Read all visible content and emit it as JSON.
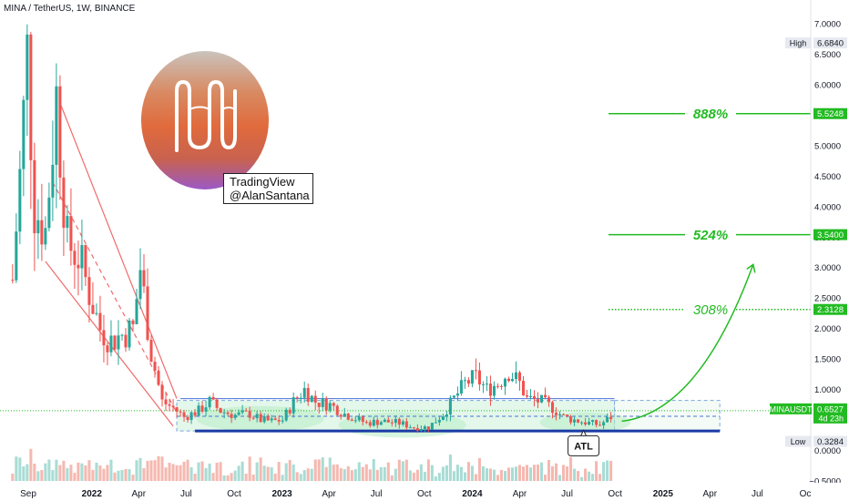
{
  "header": {
    "title": "MINA / TetherUS, 1W, BINANCE"
  },
  "watermark": {
    "line1": "TradingView",
    "line2": "@AlanSantana"
  },
  "colors": {
    "up": "#26a69a",
    "down": "#ef5350",
    "target": "#22bb22",
    "range_band": "#c8f0d6",
    "support": "#1a3aa5",
    "price_tag": "#22bb22"
  },
  "chart_data": {
    "type": "candlestick",
    "symbol": "MINAUSDT",
    "interval": "1W",
    "ylim": [
      -0.5,
      7.0
    ],
    "y_ticks": [
      7.0,
      6.5,
      6.0,
      5.5,
      5.0,
      4.5,
      4.0,
      3.5,
      3.0,
      2.5,
      2.0,
      1.5,
      1.0,
      0.5,
      0.0,
      -0.5
    ],
    "y_tick_labels": [
      "7.0000",
      "6.5000",
      "6.0000",
      "5.5000",
      "5.0000",
      "4.5000",
      "4.0000",
      "3.5000",
      "3.0000",
      "2.5000",
      "2.0000",
      "1.5000",
      "1.0000",
      "0.5000",
      "0.0000",
      "−0.5000"
    ],
    "x_ticks": [
      {
        "label": "Sep",
        "date": "2021-09-01"
      },
      {
        "label": "2022",
        "date": "2022-01-01"
      },
      {
        "label": "Apr",
        "date": "2022-04-01"
      },
      {
        "label": "Jul",
        "date": "2022-07-01"
      },
      {
        "label": "Oct",
        "date": "2022-10-01"
      },
      {
        "label": "2023",
        "date": "2023-01-01"
      },
      {
        "label": "Apr",
        "date": "2023-04-01"
      },
      {
        "label": "Jul",
        "date": "2023-07-01"
      },
      {
        "label": "Oct",
        "date": "2023-10-01"
      },
      {
        "label": "2024",
        "date": "2024-01-01"
      },
      {
        "label": "Apr",
        "date": "2024-04-01"
      },
      {
        "label": "Jul",
        "date": "2024-07-01"
      },
      {
        "label": "Oct",
        "date": "2024-10-01"
      },
      {
        "label": "2025",
        "date": "2025-01-01"
      },
      {
        "label": "Apr",
        "date": "2025-04-01"
      },
      {
        "label": "Jul",
        "date": "2025-07-01"
      },
      {
        "label": "Oc",
        "date": "2025-10-01"
      }
    ],
    "x_range": [
      "2021-08-01",
      "2025-10-01"
    ],
    "price_path": [
      [
        "2021-08-02",
        2.8
      ],
      [
        "2021-08-16",
        4.5
      ],
      [
        "2021-08-30",
        6.5
      ],
      [
        "2021-09-13",
        4.0
      ],
      [
        "2021-10-04",
        3.6
      ],
      [
        "2021-10-25",
        5.8
      ],
      [
        "2021-11-15",
        3.4
      ],
      [
        "2021-12-06",
        3.2
      ],
      [
        "2021-12-27",
        2.6
      ],
      [
        "2022-01-17",
        2.0
      ],
      [
        "2022-02-07",
        1.8
      ],
      [
        "2022-02-28",
        1.9
      ],
      [
        "2022-03-21",
        2.0
      ],
      [
        "2022-04-04",
        3.0
      ],
      [
        "2022-04-25",
        1.6
      ],
      [
        "2022-05-16",
        0.8
      ],
      [
        "2022-06-06",
        0.7
      ],
      [
        "2022-06-27",
        0.55
      ],
      [
        "2022-07-25",
        0.65
      ],
      [
        "2022-08-15",
        0.8
      ],
      [
        "2022-09-05",
        0.65
      ],
      [
        "2022-10-03",
        0.58
      ],
      [
        "2022-10-31",
        0.6
      ],
      [
        "2022-11-21",
        0.5
      ],
      [
        "2022-12-12",
        0.48
      ],
      [
        "2023-01-02",
        0.5
      ],
      [
        "2023-01-23",
        0.8
      ],
      [
        "2023-02-13",
        1.0
      ],
      [
        "2023-03-06",
        0.8
      ],
      [
        "2023-04-03",
        0.75
      ],
      [
        "2023-05-01",
        0.6
      ],
      [
        "2023-06-12",
        0.45
      ],
      [
        "2023-07-10",
        0.48
      ],
      [
        "2023-08-14",
        0.45
      ],
      [
        "2023-09-11",
        0.38
      ],
      [
        "2023-10-09",
        0.38
      ],
      [
        "2023-11-06",
        0.6
      ],
      [
        "2023-11-27",
        0.85
      ],
      [
        "2023-12-18",
        1.1
      ],
      [
        "2024-01-08",
        1.2
      ],
      [
        "2024-01-29",
        1.0
      ],
      [
        "2024-02-19",
        1.1
      ],
      [
        "2024-03-11",
        1.3
      ],
      [
        "2024-04-01",
        1.1
      ],
      [
        "2024-04-15",
        0.85
      ],
      [
        "2024-05-13",
        0.8
      ],
      [
        "2024-06-03",
        0.7
      ],
      [
        "2024-06-24",
        0.55
      ],
      [
        "2024-07-15",
        0.5
      ],
      [
        "2024-08-12",
        0.45
      ],
      [
        "2024-09-02",
        0.42
      ],
      [
        "2024-09-23",
        0.55
      ]
    ],
    "volume_range": [
      0,
      0.65
    ],
    "current_price": {
      "label": "MINAUSDT",
      "value": 0.6527,
      "value_label": "0.6527",
      "countdown": "4d 23h"
    },
    "high": {
      "label": "High",
      "value": 6.684,
      "value_label": "6.6840"
    },
    "low": {
      "label": "Low",
      "value": 0.3284,
      "value_label": "0.3284"
    },
    "targets": [
      {
        "label": "888%",
        "value": 5.5248,
        "value_label": "5.5248",
        "style": "solid"
      },
      {
        "label": "524%",
        "value": 3.54,
        "value_label": "3.5400",
        "style": "solid"
      },
      {
        "label": "308%",
        "value": 2.3128,
        "value_label": "2.3128",
        "style": "dotted"
      }
    ],
    "range_box": {
      "from": "2022-06-13",
      "to": "2024-09-30",
      "top": 0.82,
      "bottom": 0.32
    },
    "range_box_ext": {
      "from": "2024-09-30",
      "to": "2025-04-20",
      "top": 0.82,
      "bottom": 0.32
    },
    "resistance_line": {
      "from": "2022-06-20",
      "to": "2024-09-30",
      "value": 0.85
    },
    "support_line": {
      "from": "2022-07-18",
      "to": "2025-04-20",
      "value": 0.32
    },
    "mid_dashed_line": {
      "from": "2022-06-13",
      "to": "2025-04-20",
      "value": 0.56
    },
    "channel": {
      "upper": [
        [
          "2021-11-01",
          5.7
        ],
        [
          "2022-06-13",
          0.85
        ]
      ],
      "lower": [
        [
          "2021-10-04",
          3.1
        ],
        [
          "2022-06-06",
          0.4
        ]
      ],
      "mid": [
        [
          "2021-10-18",
          4.4
        ],
        [
          "2022-06-13",
          0.62
        ]
      ]
    },
    "annotation": {
      "text": "ATL",
      "date": "2024-08-05",
      "value": 0.45
    },
    "projection_arrow": {
      "from": [
        "2024-10-14",
        0.48
      ],
      "to": [
        "2025-06-23",
        3.05
      ]
    }
  }
}
